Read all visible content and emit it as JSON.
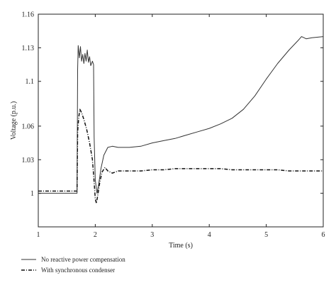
{
  "chart_data": {
    "type": "line",
    "xlabel": "Time (s)",
    "ylabel": "Voltage (p.u.)",
    "xlim": [
      1,
      6
    ],
    "ylim": [
      0.97,
      1.16
    ],
    "x_ticks": [
      "1",
      "2",
      "3",
      "4",
      "5",
      "6"
    ],
    "y_ticks": [
      "1",
      "1.03",
      "1.06",
      "1.1",
      "1.13",
      "1.16"
    ],
    "grid": false,
    "legend_position": "bottom-left",
    "series": [
      {
        "name": "No reactive power compensation",
        "style": "solid",
        "color": "#333333",
        "points": [
          [
            1.0,
            1.0
          ],
          [
            1.65,
            1.0
          ],
          [
            1.68,
            1.0
          ],
          [
            1.69,
            1.11
          ],
          [
            1.7,
            1.132
          ],
          [
            1.72,
            1.121
          ],
          [
            1.74,
            1.131
          ],
          [
            1.76,
            1.118
          ],
          [
            1.78,
            1.124
          ],
          [
            1.8,
            1.116
          ],
          [
            1.82,
            1.125
          ],
          [
            1.84,
            1.118
          ],
          [
            1.86,
            1.128
          ],
          [
            1.88,
            1.117
          ],
          [
            1.9,
            1.122
          ],
          [
            1.92,
            1.114
          ],
          [
            1.95,
            1.118
          ],
          [
            1.97,
            1.115
          ],
          [
            1.98,
            1.05
          ],
          [
            2.0,
            1.012
          ],
          [
            2.03,
            1.0
          ],
          [
            2.06,
            1.008
          ],
          [
            2.1,
            1.022
          ],
          [
            2.15,
            1.034
          ],
          [
            2.22,
            1.041
          ],
          [
            2.3,
            1.042
          ],
          [
            2.4,
            1.041
          ],
          [
            2.6,
            1.041
          ],
          [
            2.8,
            1.042
          ],
          [
            3.0,
            1.045
          ],
          [
            3.2,
            1.047
          ],
          [
            3.4,
            1.049
          ],
          [
            3.6,
            1.052
          ],
          [
            3.8,
            1.055
          ],
          [
            4.0,
            1.058
          ],
          [
            4.2,
            1.062
          ],
          [
            4.4,
            1.067
          ],
          [
            4.6,
            1.075
          ],
          [
            4.8,
            1.087
          ],
          [
            5.0,
            1.102
          ],
          [
            5.2,
            1.116
          ],
          [
            5.4,
            1.128
          ],
          [
            5.55,
            1.136
          ],
          [
            5.62,
            1.14
          ],
          [
            5.7,
            1.138
          ],
          [
            5.8,
            1.139
          ],
          [
            6.0,
            1.14
          ]
        ]
      },
      {
        "name": "With synchronous condenser",
        "style": "dashdot",
        "color": "#111111",
        "points": [
          [
            1.0,
            1.002
          ],
          [
            1.65,
            1.002
          ],
          [
            1.68,
            1.002
          ],
          [
            1.69,
            1.055
          ],
          [
            1.71,
            1.068
          ],
          [
            1.73,
            1.075
          ],
          [
            1.76,
            1.072
          ],
          [
            1.8,
            1.066
          ],
          [
            1.85,
            1.057
          ],
          [
            1.9,
            1.045
          ],
          [
            1.95,
            1.03
          ],
          [
            1.98,
            1.01
          ],
          [
            2.0,
            0.995
          ],
          [
            2.02,
            0.991
          ],
          [
            2.05,
            1.0
          ],
          [
            2.08,
            1.01
          ],
          [
            2.12,
            1.019
          ],
          [
            2.17,
            1.023
          ],
          [
            2.22,
            1.02
          ],
          [
            2.3,
            1.018
          ],
          [
            2.4,
            1.02
          ],
          [
            2.6,
            1.02
          ],
          [
            2.8,
            1.02
          ],
          [
            3.0,
            1.021
          ],
          [
            3.2,
            1.021
          ],
          [
            3.4,
            1.022
          ],
          [
            3.6,
            1.022
          ],
          [
            3.8,
            1.022
          ],
          [
            4.0,
            1.022
          ],
          [
            4.2,
            1.022
          ],
          [
            4.4,
            1.021
          ],
          [
            4.6,
            1.021
          ],
          [
            4.8,
            1.021
          ],
          [
            5.0,
            1.021
          ],
          [
            5.2,
            1.021
          ],
          [
            5.4,
            1.02
          ],
          [
            5.6,
            1.02
          ],
          [
            5.8,
            1.02
          ],
          [
            6.0,
            1.02
          ]
        ]
      }
    ]
  }
}
